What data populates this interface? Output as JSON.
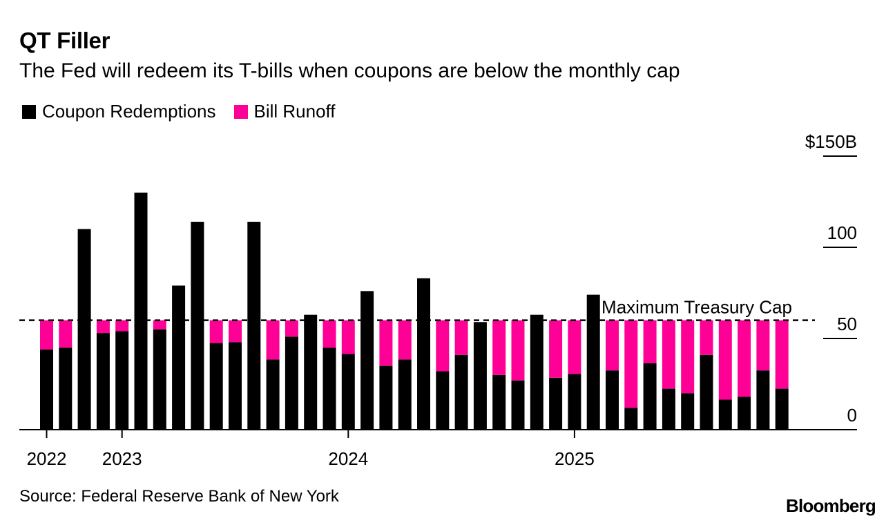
{
  "title": "QT Filler",
  "subtitle": "The Fed will redeem its T-bills when coupons are below the monthly cap",
  "legend": {
    "coupon_label": "Coupon Redemptions",
    "bill_label": "Bill Runoff"
  },
  "colors": {
    "coupon": "#000000",
    "bill": "#ff0096",
    "axis": "#000000",
    "background": "#ffffff"
  },
  "source": "Source: Federal Reserve Bank of New York",
  "brand": "Bloomberg",
  "chart_data": {
    "type": "bar",
    "stacked": true,
    "title": "QT Filler",
    "subtitle": "The Fed will redeem its T-bills when coupons are below the monthly cap",
    "xlabel": "",
    "ylabel": "",
    "ylim": [
      0,
      150
    ],
    "y_ticks": [
      0,
      50,
      100,
      150
    ],
    "y_tick_labels": [
      "0",
      "50",
      "100",
      "$150B"
    ],
    "y_axis_side": "right",
    "x_tick_labels": [
      {
        "label": "2022",
        "index": 0
      },
      {
        "label": "2023",
        "index": 4
      },
      {
        "label": "2024",
        "index": 16
      },
      {
        "label": "2025",
        "index": 28
      }
    ],
    "categories": [
      "2022-12",
      "2023-01",
      "2023-02",
      "2023-03",
      "2023-04",
      "2023-05",
      "2023-06",
      "2023-07",
      "2023-08",
      "2023-09",
      "2023-10",
      "2023-11",
      "2023-12",
      "2024-01",
      "2024-02",
      "2024-03",
      "2024-04",
      "2024-05",
      "2024-06",
      "2024-07",
      "2024-08",
      "2024-09",
      "2024-10",
      "2024-11",
      "2024-12",
      "2025-01",
      "2025-02",
      "2025-03",
      "2025-04",
      "2025-05",
      "2025-06",
      "2025-07",
      "2025-08",
      "2025-09",
      "2025-10",
      "2025-11",
      "2025-12",
      "2026-01",
      "2026-02",
      "2026-03"
    ],
    "series": [
      {
        "name": "Coupon Redemptions",
        "values": [
          44,
          45,
          110,
          53,
          54,
          130,
          55,
          79,
          114,
          47.5,
          48,
          114,
          38.5,
          51,
          63,
          45,
          41.5,
          76,
          35,
          38.5,
          83,
          32,
          41,
          59,
          30,
          27,
          63,
          28.5,
          30.5,
          74,
          32.5,
          12,
          36.5,
          22.5,
          20,
          41,
          16.5,
          18,
          32.5,
          22.5
        ],
        "color": "#000000"
      },
      {
        "name": "Bill Runoff",
        "values": [
          16,
          15,
          0,
          7,
          6,
          0,
          5,
          0,
          0,
          12.5,
          12,
          0,
          21.5,
          9,
          0,
          15,
          18.5,
          0,
          25,
          21.5,
          0,
          28,
          19,
          0,
          30,
          33,
          0,
          31.5,
          29.5,
          0,
          27.5,
          48,
          23.5,
          37.5,
          40,
          19,
          43.5,
          42,
          27.5,
          37.5
        ],
        "color": "#ff0096"
      }
    ],
    "reference_lines": [
      {
        "value": 60,
        "label": "Maximum Treasury Cap",
        "style": "dashed"
      }
    ],
    "legend_position": "top-left",
    "grid": false
  }
}
